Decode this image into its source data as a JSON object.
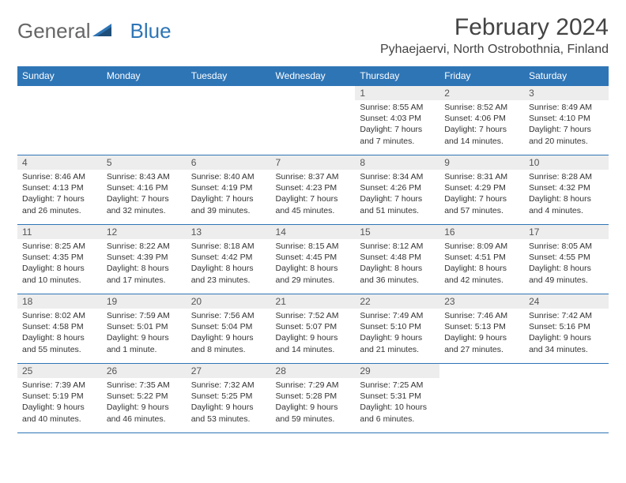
{
  "brand": {
    "part1": "General",
    "part2": "Blue"
  },
  "title": "February 2024",
  "location": "Pyhaejaervi, North Ostrobothnia, Finland",
  "colors": {
    "header_bg": "#2e75b6",
    "header_text": "#ffffff",
    "grid_line": "#2e75b6",
    "daynum_bg": "#ededed",
    "body_text": "#333333",
    "page_bg": "#ffffff"
  },
  "dayNames": [
    "Sunday",
    "Monday",
    "Tuesday",
    "Wednesday",
    "Thursday",
    "Friday",
    "Saturday"
  ],
  "weeks": [
    [
      null,
      null,
      null,
      null,
      {
        "n": "1",
        "sr": "8:55 AM",
        "ss": "4:03 PM",
        "dl": "7 hours and 7 minutes."
      },
      {
        "n": "2",
        "sr": "8:52 AM",
        "ss": "4:06 PM",
        "dl": "7 hours and 14 minutes."
      },
      {
        "n": "3",
        "sr": "8:49 AM",
        "ss": "4:10 PM",
        "dl": "7 hours and 20 minutes."
      }
    ],
    [
      {
        "n": "4",
        "sr": "8:46 AM",
        "ss": "4:13 PM",
        "dl": "7 hours and 26 minutes."
      },
      {
        "n": "5",
        "sr": "8:43 AM",
        "ss": "4:16 PM",
        "dl": "7 hours and 32 minutes."
      },
      {
        "n": "6",
        "sr": "8:40 AM",
        "ss": "4:19 PM",
        "dl": "7 hours and 39 minutes."
      },
      {
        "n": "7",
        "sr": "8:37 AM",
        "ss": "4:23 PM",
        "dl": "7 hours and 45 minutes."
      },
      {
        "n": "8",
        "sr": "8:34 AM",
        "ss": "4:26 PM",
        "dl": "7 hours and 51 minutes."
      },
      {
        "n": "9",
        "sr": "8:31 AM",
        "ss": "4:29 PM",
        "dl": "7 hours and 57 minutes."
      },
      {
        "n": "10",
        "sr": "8:28 AM",
        "ss": "4:32 PM",
        "dl": "8 hours and 4 minutes."
      }
    ],
    [
      {
        "n": "11",
        "sr": "8:25 AM",
        "ss": "4:35 PM",
        "dl": "8 hours and 10 minutes."
      },
      {
        "n": "12",
        "sr": "8:22 AM",
        "ss": "4:39 PM",
        "dl": "8 hours and 17 minutes."
      },
      {
        "n": "13",
        "sr": "8:18 AM",
        "ss": "4:42 PM",
        "dl": "8 hours and 23 minutes."
      },
      {
        "n": "14",
        "sr": "8:15 AM",
        "ss": "4:45 PM",
        "dl": "8 hours and 29 minutes."
      },
      {
        "n": "15",
        "sr": "8:12 AM",
        "ss": "4:48 PM",
        "dl": "8 hours and 36 minutes."
      },
      {
        "n": "16",
        "sr": "8:09 AM",
        "ss": "4:51 PM",
        "dl": "8 hours and 42 minutes."
      },
      {
        "n": "17",
        "sr": "8:05 AM",
        "ss": "4:55 PM",
        "dl": "8 hours and 49 minutes."
      }
    ],
    [
      {
        "n": "18",
        "sr": "8:02 AM",
        "ss": "4:58 PM",
        "dl": "8 hours and 55 minutes."
      },
      {
        "n": "19",
        "sr": "7:59 AM",
        "ss": "5:01 PM",
        "dl": "9 hours and 1 minute."
      },
      {
        "n": "20",
        "sr": "7:56 AM",
        "ss": "5:04 PM",
        "dl": "9 hours and 8 minutes."
      },
      {
        "n": "21",
        "sr": "7:52 AM",
        "ss": "5:07 PM",
        "dl": "9 hours and 14 minutes."
      },
      {
        "n": "22",
        "sr": "7:49 AM",
        "ss": "5:10 PM",
        "dl": "9 hours and 21 minutes."
      },
      {
        "n": "23",
        "sr": "7:46 AM",
        "ss": "5:13 PM",
        "dl": "9 hours and 27 minutes."
      },
      {
        "n": "24",
        "sr": "7:42 AM",
        "ss": "5:16 PM",
        "dl": "9 hours and 34 minutes."
      }
    ],
    [
      {
        "n": "25",
        "sr": "7:39 AM",
        "ss": "5:19 PM",
        "dl": "9 hours and 40 minutes."
      },
      {
        "n": "26",
        "sr": "7:35 AM",
        "ss": "5:22 PM",
        "dl": "9 hours and 46 minutes."
      },
      {
        "n": "27",
        "sr": "7:32 AM",
        "ss": "5:25 PM",
        "dl": "9 hours and 53 minutes."
      },
      {
        "n": "28",
        "sr": "7:29 AM",
        "ss": "5:28 PM",
        "dl": "9 hours and 59 minutes."
      },
      {
        "n": "29",
        "sr": "7:25 AM",
        "ss": "5:31 PM",
        "dl": "10 hours and 6 minutes."
      },
      null,
      null
    ]
  ],
  "labels": {
    "sunrise": "Sunrise: ",
    "sunset": "Sunset: ",
    "daylight": "Daylight: "
  }
}
